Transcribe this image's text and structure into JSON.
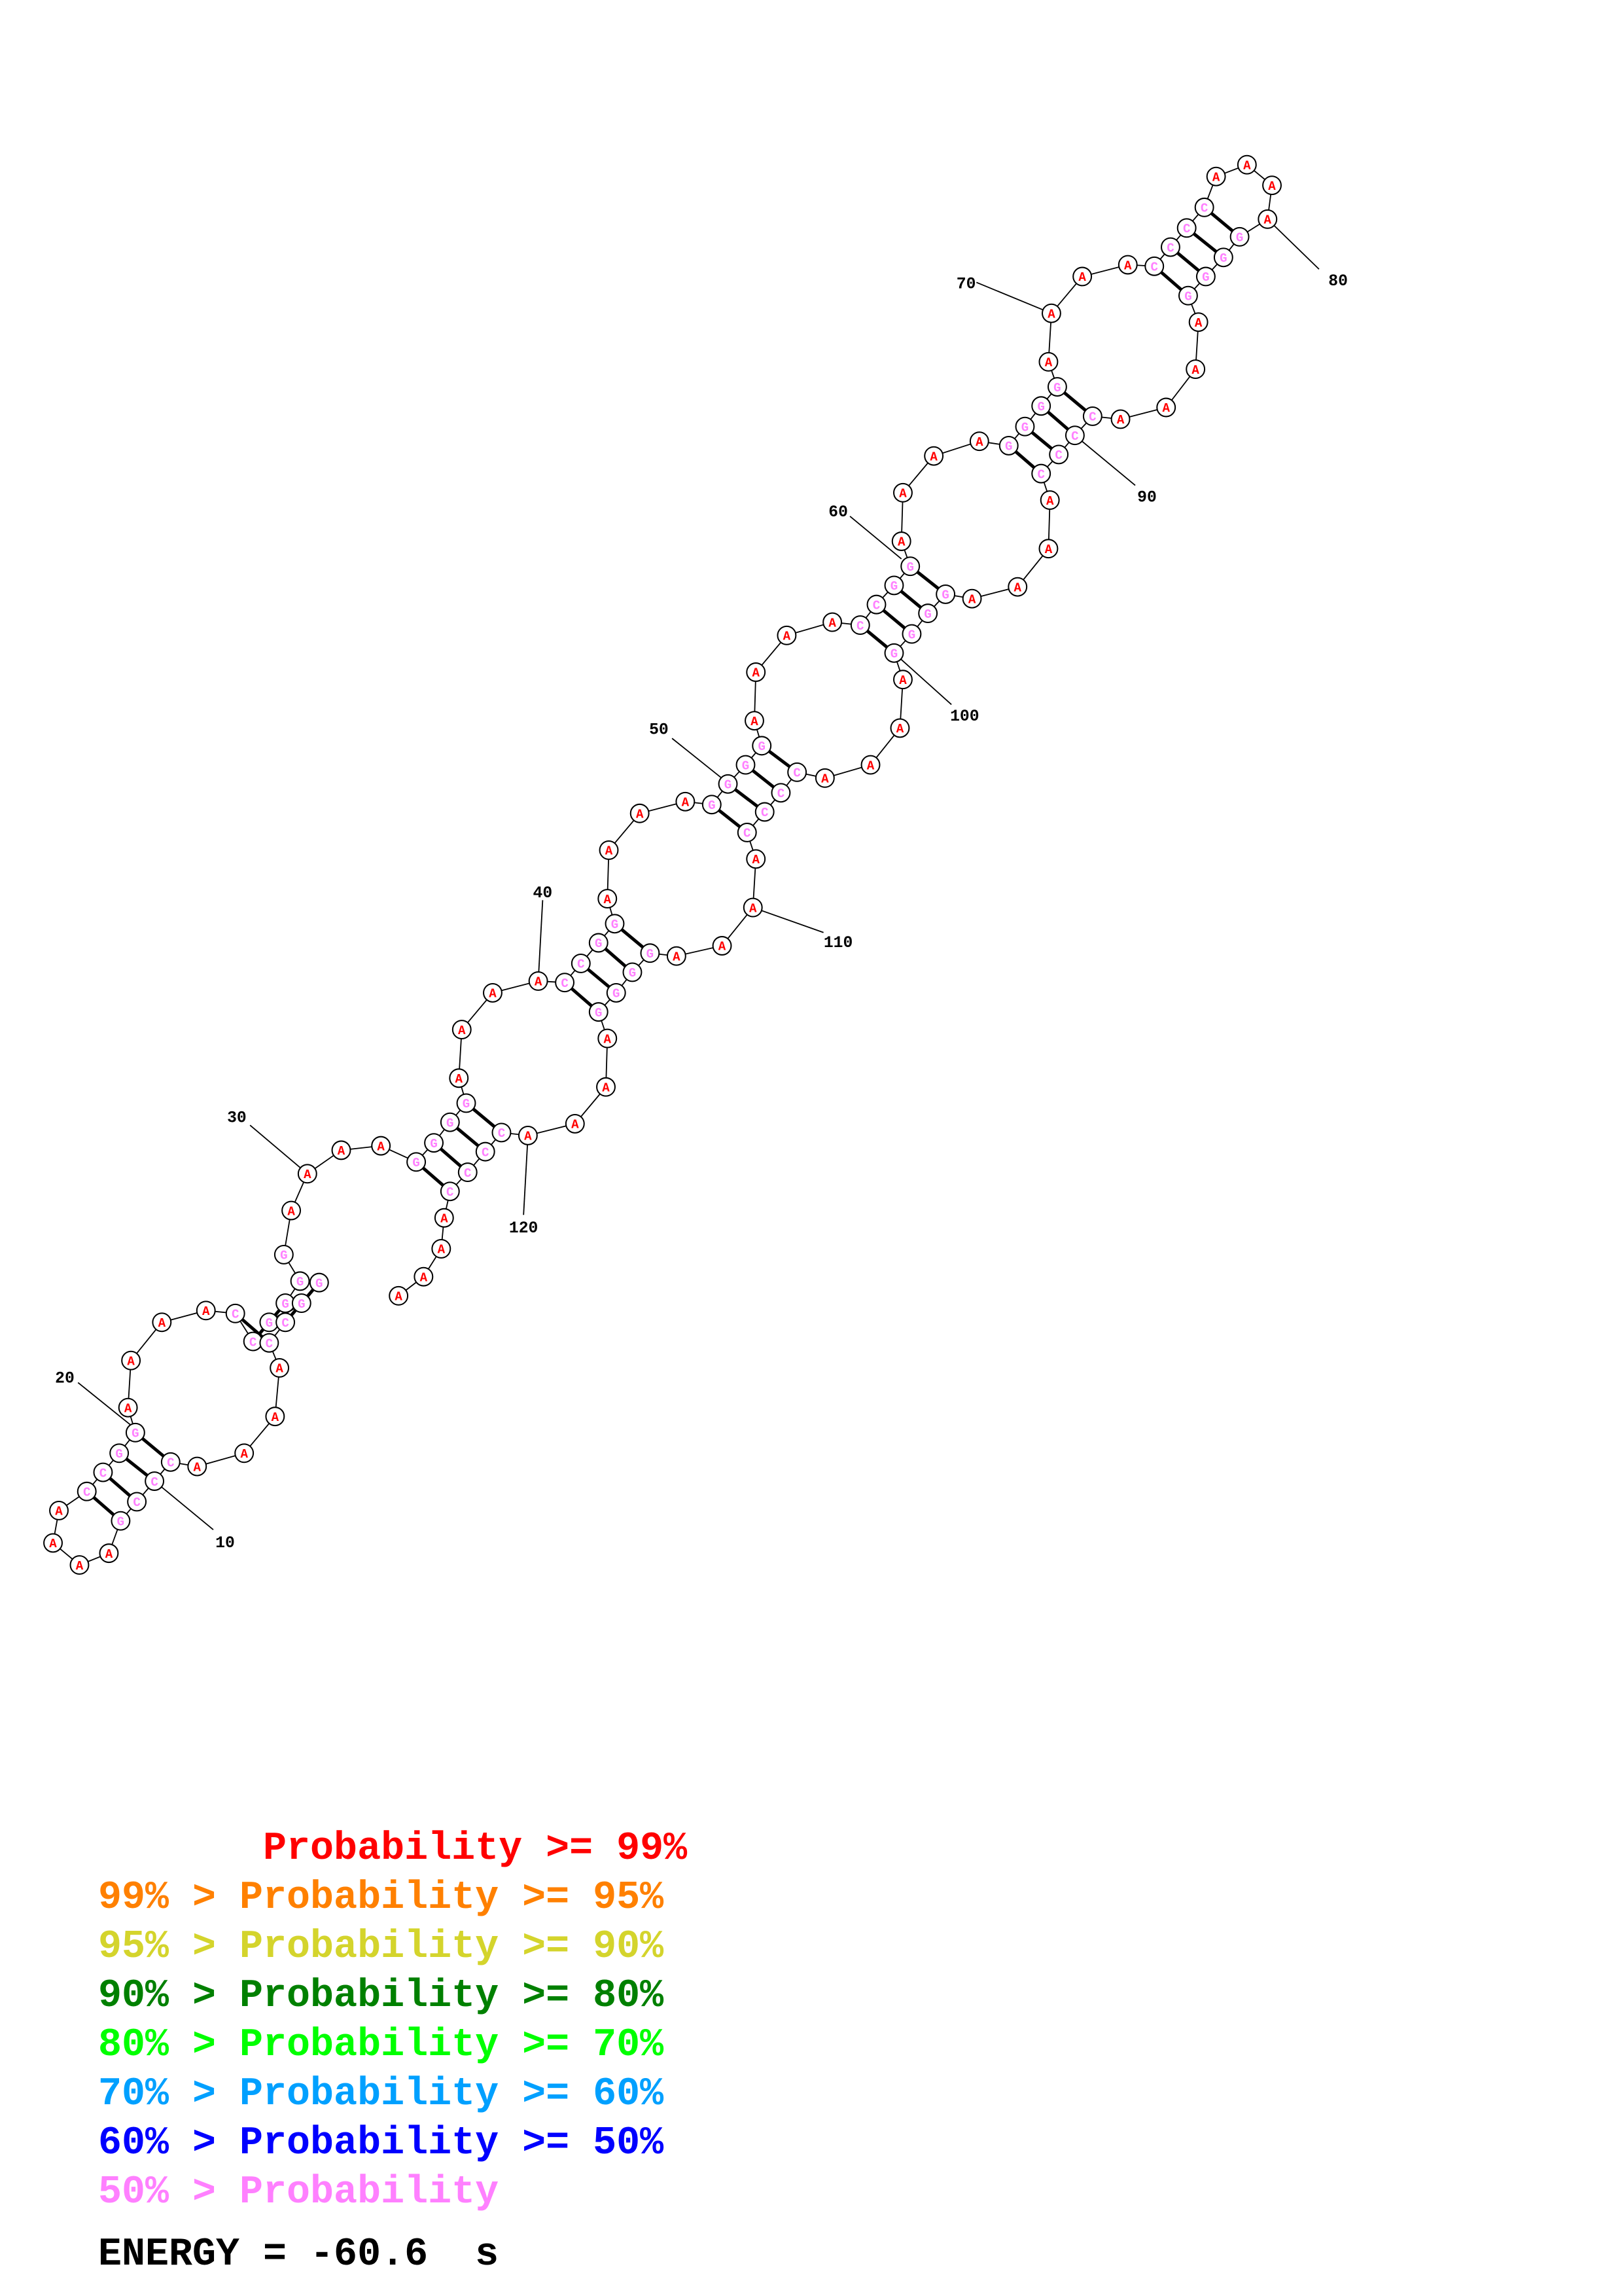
{
  "structure": {
    "base_colors": {
      "A": "#ff0000",
      "C": "#ff80ff",
      "G": "#ff80ff"
    },
    "position_labels": [
      "10",
      "20",
      "30",
      "40",
      "50",
      "60",
      "70",
      "80",
      "90",
      "100",
      "110",
      "120"
    ]
  },
  "legend": {
    "lines": [
      {
        "text": "       Probability >= 99%",
        "color": "#ff0000"
      },
      {
        "text": "99% > Probability >= 95%",
        "color": "#ff8000"
      },
      {
        "text": "95% > Probability >= 90%",
        "color": "#d4d42c"
      },
      {
        "text": "90% > Probability >= 80%",
        "color": "#008000"
      },
      {
        "text": "80% > Probability >= 70%",
        "color": "#00ff00"
      },
      {
        "text": "70% > Probability >= 60%",
        "color": "#00a0ff"
      },
      {
        "text": "60% > Probability >= 50%",
        "color": "#0000ff"
      },
      {
        "text": "50% > Probability",
        "color": "#ff80ff"
      }
    ],
    "energy": "ENERGY = -60.6  s"
  }
}
